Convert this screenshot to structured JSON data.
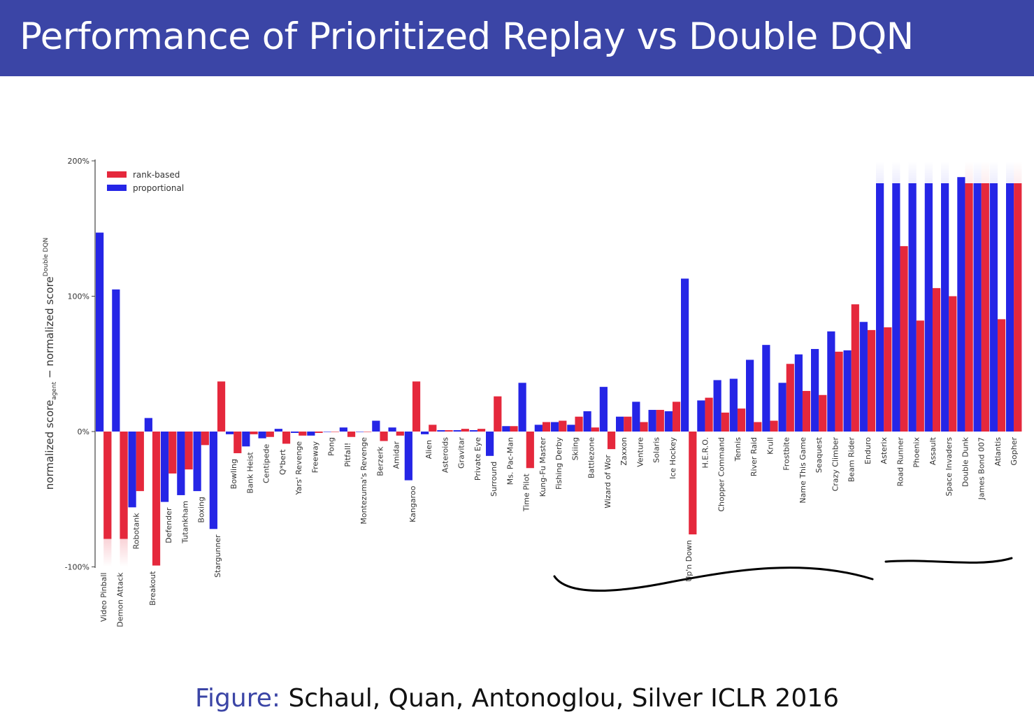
{
  "header": {
    "title": "Performance of Prioritized Replay vs Double DQN"
  },
  "caption": {
    "label": "Figure:",
    "text": "Schaul, Quan, Antonoglou, Silver ICLR 2016"
  },
  "colors": {
    "rank_based": "#e5283c",
    "proportional": "#2525e6",
    "title_bar": "#3b45a6"
  },
  "chart_data": {
    "type": "bar",
    "ylabel": "normalized score_agent − normalized score_Double DQN",
    "ylabel_parts": {
      "main": "normalized score",
      "sub_agent": "agent",
      "mid": " − normalized score",
      "sub_ddqn": "Double DQN"
    },
    "ylim": [
      -100,
      200
    ],
    "yticks": [
      "200%",
      "100%",
      "0%",
      "-100%"
    ],
    "ytick_values": [
      200,
      100,
      0,
      -100
    ],
    "legend": {
      "position": "top-left",
      "entries": [
        "rank-based",
        "proportional"
      ]
    },
    "grid": false,
    "categories": [
      "Video Pinball",
      "Demon Attack",
      "Robotank",
      "Breakout",
      "Defender",
      "Tutankham",
      "Boxing",
      "Stargunner",
      "Bowling",
      "Bank Heist",
      "Centipede",
      "Q*bert",
      "Yars' Revenge",
      "Freeway",
      "Pong",
      "Pitfall!",
      "Montezuma's Revenge",
      "Berzerk",
      "Amidar",
      "Kangaroo",
      "Alien",
      "Asteroids",
      "Gravitar",
      "Private Eye",
      "Surround",
      "Ms. Pac-Man",
      "Time Pilot",
      "Kung-Fu Master",
      "Fishing Derby",
      "Skiing",
      "Battlezone",
      "Wizard of Wor",
      "Zaxxon",
      "Venture",
      "Solaris",
      "Ice Hockey",
      "Up'n Down",
      "H.E.R.O.",
      "Chopper Command",
      "Tennis",
      "River Raid",
      "Krull",
      "Frostbite",
      "Name This Game",
      "Seaquest",
      "Crazy Climber",
      "Beam Rider",
      "Enduro",
      "Asterix",
      "Road Runner",
      "Phoenix",
      "Assault",
      "Space Invaders",
      "Double Dunk",
      "James Bond 007",
      "Atlantis",
      "Gopher"
    ],
    "series": [
      {
        "name": "proportional",
        "values": [
          147,
          105,
          -56,
          10,
          -52,
          -47,
          -44,
          -72,
          -2,
          -11,
          -5,
          2,
          -1,
          -3,
          0,
          3,
          0,
          8,
          3,
          -36,
          -2,
          1,
          1,
          1,
          -18,
          4,
          36,
          5,
          7,
          5,
          15,
          33,
          11,
          22,
          16,
          15,
          113,
          23,
          38,
          39,
          53,
          64,
          36,
          57,
          61,
          74,
          60,
          81,
          200,
          200,
          200,
          200,
          200,
          188,
          200,
          200,
          200
        ]
      },
      {
        "name": "rank-based",
        "values": [
          -100,
          -100,
          -44,
          -99,
          -31,
          -28,
          -10,
          37,
          -16,
          -2,
          -4,
          -9,
          -3,
          -1,
          0,
          -4,
          0,
          -7,
          -3,
          37,
          5,
          1,
          2,
          2,
          26,
          4,
          -27,
          7,
          8,
          11,
          3,
          -13,
          11,
          7,
          16,
          22,
          -76,
          25,
          14,
          17,
          7,
          8,
          50,
          30,
          27,
          59,
          94,
          75,
          77,
          137,
          82,
          106,
          100,
          200,
          200,
          83,
          200
        ]
      }
    ]
  }
}
